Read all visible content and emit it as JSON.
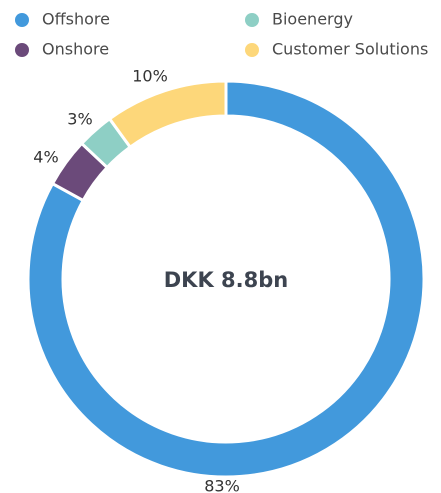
{
  "chart_data": {
    "type": "donut",
    "center_label": "DKK 8.8bn",
    "categories": [
      "Offshore",
      "Onshore",
      "Bioenergy",
      "Customer Solutions"
    ],
    "values": [
      83,
      4,
      3,
      10
    ],
    "value_labels": [
      "83%",
      "4%",
      "3%",
      "10%"
    ],
    "colors": [
      "#4299dc",
      "#6b4a7a",
      "#8ecfc5",
      "#fdd77a"
    ],
    "legend": "top"
  }
}
